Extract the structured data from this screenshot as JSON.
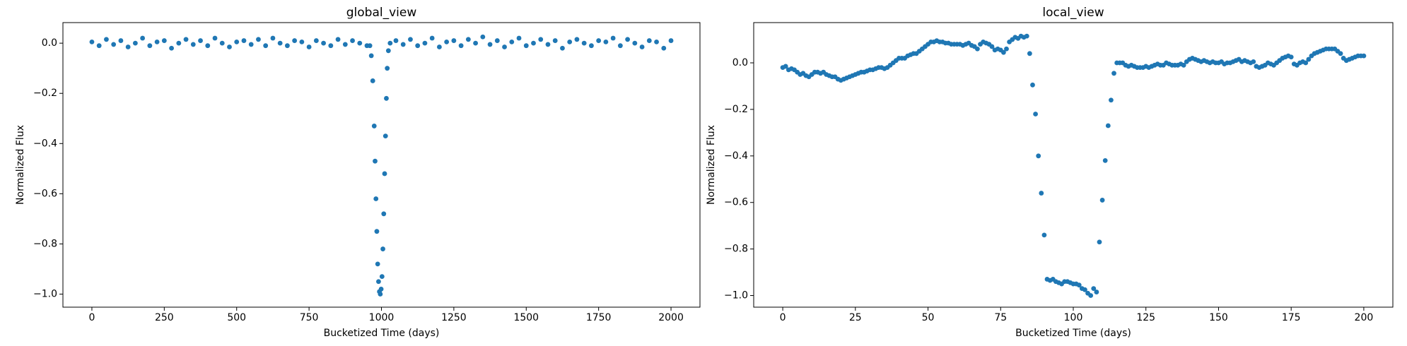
{
  "chart_data": [
    {
      "type": "scatter",
      "title": "global_view",
      "x_label": "Bucketized Time (days)",
      "y_label": "Normalized Flux",
      "color": "#1f77b4",
      "xlim": [
        -100,
        2100
      ],
      "ylim": [
        -1.052,
        0.082
      ],
      "xticks": [
        0,
        250,
        500,
        750,
        1000,
        1250,
        1500,
        1750,
        2000
      ],
      "yticks": [
        {
          "value": 0,
          "label": "0.0"
        },
        {
          "value": -0.2,
          "label": "−0.2"
        },
        {
          "value": -0.4,
          "label": "−0.4"
        },
        {
          "value": -0.6,
          "label": "−0.6"
        },
        {
          "value": -0.8,
          "label": "−0.8"
        },
        {
          "value": -1.0,
          "label": "−1.0"
        }
      ],
      "x": [
        0,
        25,
        50,
        75,
        100,
        125,
        150,
        175,
        200,
        225,
        250,
        275,
        300,
        325,
        350,
        375,
        400,
        425,
        450,
        475,
        500,
        525,
        550,
        575,
        600,
        625,
        650,
        675,
        700,
        725,
        750,
        775,
        800,
        825,
        850,
        875,
        900,
        925,
        950,
        960,
        965,
        970,
        975,
        978,
        981,
        984,
        987,
        990,
        993,
        996,
        999,
        1002,
        1005,
        1008,
        1011,
        1014,
        1017,
        1020,
        1024,
        1030,
        1050,
        1075,
        1100,
        1125,
        1150,
        1175,
        1200,
        1225,
        1250,
        1275,
        1300,
        1325,
        1350,
        1375,
        1400,
        1425,
        1450,
        1475,
        1500,
        1525,
        1550,
        1575,
        1600,
        1625,
        1650,
        1675,
        1700,
        1725,
        1750,
        1775,
        1800,
        1825,
        1850,
        1875,
        1900,
        1925,
        1950,
        1975,
        2000
      ],
      "values": [
        0.005,
        -0.01,
        0.015,
        -0.005,
        0.01,
        -0.015,
        0.0,
        0.02,
        -0.01,
        0.005,
        0.01,
        -0.02,
        0.0,
        0.015,
        -0.005,
        0.01,
        -0.01,
        0.02,
        0.0,
        -0.015,
        0.005,
        0.01,
        -0.005,
        0.015,
        -0.01,
        0.02,
        0.0,
        -0.01,
        0.01,
        0.005,
        -0.015,
        0.01,
        0.0,
        -0.01,
        0.015,
        -0.005,
        0.01,
        0.0,
        -0.01,
        -0.01,
        -0.05,
        -0.15,
        -0.33,
        -0.47,
        -0.62,
        -0.75,
        -0.88,
        -0.95,
        -0.99,
        -1.0,
        -0.98,
        -0.93,
        -0.82,
        -0.68,
        -0.52,
        -0.37,
        -0.22,
        -0.1,
        -0.03,
        0.0,
        0.01,
        -0.005,
        0.015,
        -0.01,
        0.0,
        0.02,
        -0.015,
        0.005,
        0.01,
        -0.01,
        0.015,
        0.0,
        0.025,
        -0.005,
        0.01,
        -0.015,
        0.005,
        0.02,
        -0.01,
        0.0,
        0.015,
        -0.005,
        0.01,
        -0.02,
        0.005,
        0.015,
        0.0,
        -0.01,
        0.01,
        0.005,
        0.02,
        -0.01,
        0.015,
        0.0,
        -0.015,
        0.01,
        0.005,
        -0.02,
        0.01
      ]
    },
    {
      "type": "scatter",
      "title": "local_view",
      "x_label": "Bucketized Time (days)",
      "y_label": "Normalized Flux",
      "color": "#1f77b4",
      "xlim": [
        -10,
        210
      ],
      "ylim": [
        -1.05,
        0.173
      ],
      "xticks": [
        0,
        25,
        50,
        75,
        100,
        125,
        150,
        175,
        200
      ],
      "yticks": [
        {
          "value": 0,
          "label": "0.0"
        },
        {
          "value": -0.2,
          "label": "−0.2"
        },
        {
          "value": -0.4,
          "label": "−0.4"
        },
        {
          "value": -0.6,
          "label": "−0.6"
        },
        {
          "value": -0.8,
          "label": "−0.8"
        },
        {
          "value": -1.0,
          "label": "−1.0"
        }
      ],
      "x": [
        0,
        1,
        2,
        3,
        4,
        5,
        6,
        7,
        8,
        9,
        10,
        11,
        12,
        13,
        14,
        15,
        16,
        17,
        18,
        19,
        20,
        21,
        22,
        23,
        24,
        25,
        26,
        27,
        28,
        29,
        30,
        31,
        32,
        33,
        34,
        35,
        36,
        37,
        38,
        39,
        40,
        41,
        42,
        43,
        44,
        45,
        46,
        47,
        48,
        49,
        50,
        51,
        52,
        53,
        54,
        55,
        56,
        57,
        58,
        59,
        60,
        61,
        62,
        63,
        64,
        65,
        66,
        67,
        68,
        69,
        70,
        71,
        72,
        73,
        74,
        75,
        76,
        77,
        78,
        79,
        80,
        81,
        82,
        83,
        84,
        85,
        86,
        87,
        88,
        89,
        90,
        91,
        92,
        93,
        94,
        95,
        96,
        97,
        98,
        99,
        100,
        101,
        102,
        103,
        104,
        105,
        106,
        107,
        108,
        109,
        110,
        111,
        112,
        113,
        114,
        115,
        116,
        117,
        118,
        119,
        120,
        121,
        122,
        123,
        124,
        125,
        126,
        127,
        128,
        129,
        130,
        131,
        132,
        133,
        134,
        135,
        136,
        137,
        138,
        139,
        140,
        141,
        142,
        143,
        144,
        145,
        146,
        147,
        148,
        149,
        150,
        151,
        152,
        153,
        154,
        155,
        156,
        157,
        158,
        159,
        160,
        161,
        162,
        163,
        164,
        165,
        166,
        167,
        168,
        169,
        170,
        171,
        172,
        173,
        174,
        175,
        176,
        177,
        178,
        179,
        180,
        181,
        182,
        183,
        184,
        185,
        186,
        187,
        188,
        189,
        190,
        191,
        192,
        193,
        194,
        195,
        196,
        197,
        198,
        199,
        200
      ],
      "values": [
        -0.02,
        -0.015,
        -0.03,
        -0.025,
        -0.03,
        -0.04,
        -0.05,
        -0.045,
        -0.055,
        -0.06,
        -0.05,
        -0.04,
        -0.04,
        -0.045,
        -0.04,
        -0.05,
        -0.055,
        -0.06,
        -0.06,
        -0.07,
        -0.075,
        -0.07,
        -0.065,
        -0.06,
        -0.055,
        -0.05,
        -0.045,
        -0.04,
        -0.04,
        -0.035,
        -0.03,
        -0.03,
        -0.025,
        -0.02,
        -0.02,
        -0.025,
        -0.02,
        -0.01,
        0.0,
        0.01,
        0.02,
        0.02,
        0.02,
        0.03,
        0.035,
        0.04,
        0.04,
        0.05,
        0.06,
        0.07,
        0.08,
        0.09,
        0.09,
        0.095,
        0.09,
        0.09,
        0.085,
        0.085,
        0.08,
        0.08,
        0.08,
        0.08,
        0.075,
        0.08,
        0.085,
        0.075,
        0.07,
        0.06,
        0.08,
        0.09,
        0.085,
        0.08,
        0.07,
        0.055,
        0.06,
        0.055,
        0.045,
        0.06,
        0.09,
        0.1,
        0.11,
        0.105,
        0.115,
        0.11,
        0.115,
        0.04,
        -0.095,
        -0.22,
        -0.4,
        -0.56,
        -0.74,
        -0.93,
        -0.935,
        -0.93,
        -0.94,
        -0.945,
        -0.95,
        -0.94,
        -0.94,
        -0.945,
        -0.95,
        -0.95,
        -0.955,
        -0.97,
        -0.975,
        -0.99,
        -1.0,
        -0.97,
        -0.985,
        -0.77,
        -0.59,
        -0.42,
        -0.27,
        -0.16,
        -0.045,
        0.0,
        0.0,
        0.0,
        -0.01,
        -0.015,
        -0.01,
        -0.015,
        -0.02,
        -0.02,
        -0.02,
        -0.015,
        -0.02,
        -0.015,
        -0.01,
        -0.005,
        -0.01,
        -0.01,
        0.0,
        -0.005,
        -0.01,
        -0.01,
        -0.01,
        -0.005,
        -0.01,
        0.005,
        0.015,
        0.02,
        0.015,
        0.01,
        0.005,
        0.01,
        0.005,
        0.0,
        0.005,
        0.0,
        0.0,
        0.005,
        -0.005,
        0.0,
        0.0,
        0.005,
        0.01,
        0.015,
        0.005,
        0.01,
        0.005,
        0.0,
        0.005,
        -0.015,
        -0.02,
        -0.015,
        -0.01,
        0.0,
        -0.005,
        -0.01,
        0.0,
        0.01,
        0.02,
        0.025,
        0.03,
        0.025,
        -0.005,
        -0.01,
        0.0,
        0.005,
        0.0,
        0.015,
        0.03,
        0.04,
        0.045,
        0.05,
        0.055,
        0.06,
        0.06,
        0.06,
        0.06,
        0.05,
        0.04,
        0.02,
        0.01,
        0.015,
        0.02,
        0.025,
        0.03,
        0.03,
        0.03
      ]
    }
  ]
}
